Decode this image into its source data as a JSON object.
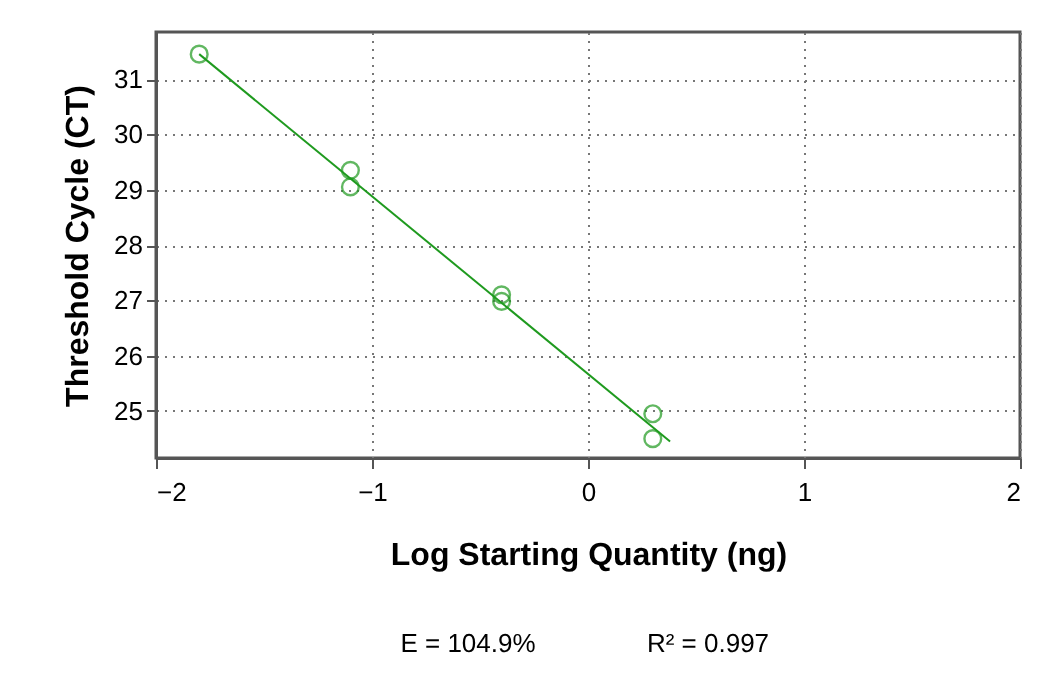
{
  "chart_data": {
    "type": "scatter",
    "xlabel": "Log Starting Quantity (ng)",
    "ylabel": "Threshold Cycle (CT)",
    "xlim": [
      -2,
      2
    ],
    "xticks": [
      -2,
      -1,
      0,
      1,
      2
    ],
    "ylim": [
      24.15,
      31.85
    ],
    "yticks": [
      25,
      26,
      27,
      28,
      29,
      30,
      31
    ],
    "grid": true,
    "marker": "circle",
    "series": [
      {
        "color": "#1f9a1f",
        "x": [
          -1.8,
          -1.1,
          -1.1,
          -0.4,
          -0.4,
          0.3,
          0.3
        ],
        "values": [
          31.45,
          29.35,
          29.05,
          27.1,
          26.98,
          24.95,
          24.5
        ]
      },
      {
        "type": "line",
        "color": "#1f9a1f",
        "x": [
          -1.8,
          0.38
        ],
        "values": [
          31.45,
          24.45
        ],
        "marker": "none",
        "line_style": "solid"
      }
    ],
    "annotations": [
      "E = 104.9%",
      "R² = 0.997"
    ]
  }
}
